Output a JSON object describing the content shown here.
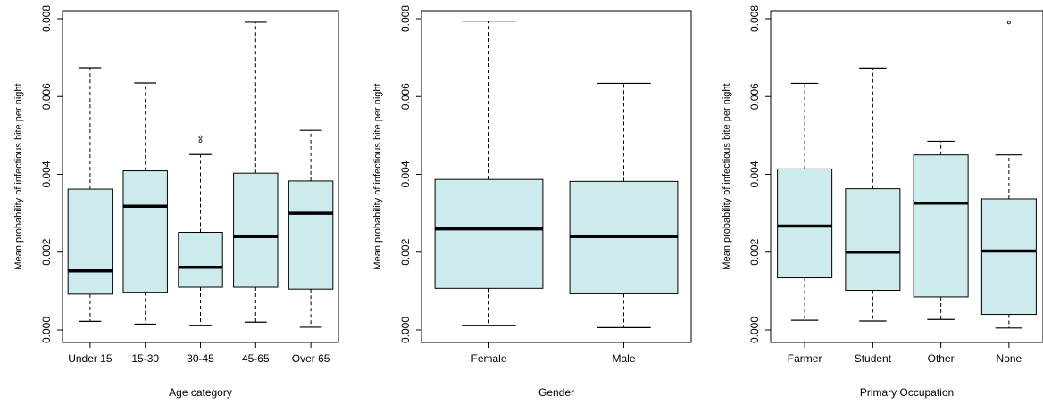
{
  "colors": {
    "box_fill": "#cdeaec",
    "stroke": "#000000",
    "background": "#ffffff"
  },
  "chart_data": [
    {
      "type": "boxplot",
      "title": "",
      "xlabel": "Age category",
      "ylabel": "Mean probability of infectious bite per night",
      "ylim": [
        0,
        0.008
      ],
      "yticks": [
        "0.000",
        "0.002",
        "0.004",
        "0.006",
        "0.008"
      ],
      "grid": false,
      "categories": [
        "Under 15",
        "15-30",
        "30-45",
        "45-65",
        "Over 65"
      ],
      "boxes": [
        {
          "min": 0.00022,
          "q1": 0.00092,
          "median": 0.00152,
          "q3": 0.00362,
          "max": 0.00674,
          "outliers": []
        },
        {
          "min": 0.00015,
          "q1": 0.00097,
          "median": 0.00318,
          "q3": 0.00409,
          "max": 0.00635,
          "outliers": []
        },
        {
          "min": 0.00012,
          "q1": 0.0011,
          "median": 0.00161,
          "q3": 0.00251,
          "max": 0.00451,
          "outliers": [
            0.00486,
            0.00496
          ]
        },
        {
          "min": 0.0002,
          "q1": 0.0011,
          "median": 0.0024,
          "q3": 0.00403,
          "max": 0.00791,
          "outliers": []
        },
        {
          "min": 7e-05,
          "q1": 0.00105,
          "median": 0.003,
          "q3": 0.00383,
          "max": 0.00513,
          "outliers": []
        }
      ]
    },
    {
      "type": "boxplot",
      "title": "",
      "xlabel": "Gender",
      "ylabel": "Mean probability of infectious bite per night",
      "ylim": [
        0,
        0.008
      ],
      "yticks": [
        "0.000",
        "0.002",
        "0.004",
        "0.006",
        "0.008"
      ],
      "grid": false,
      "categories": [
        "Female",
        "Male"
      ],
      "boxes": [
        {
          "min": 0.00012,
          "q1": 0.00107,
          "median": 0.0026,
          "q3": 0.00387,
          "max": 0.00794,
          "outliers": []
        },
        {
          "min": 6e-05,
          "q1": 0.00093,
          "median": 0.0024,
          "q3": 0.00382,
          "max": 0.00634,
          "outliers": []
        }
      ]
    },
    {
      "type": "boxplot",
      "title": "",
      "xlabel": "Primary Occupation",
      "ylabel": "Mean probability of infectious bite per night",
      "ylim": [
        0,
        0.008
      ],
      "yticks": [
        "0.000",
        "0.002",
        "0.004",
        "0.006",
        "0.008"
      ],
      "grid": false,
      "categories": [
        "Farmer",
        "Student",
        "Other",
        "None"
      ],
      "boxes": [
        {
          "min": 0.00025,
          "q1": 0.00134,
          "median": 0.00267,
          "q3": 0.00414,
          "max": 0.00634,
          "outliers": []
        },
        {
          "min": 0.00023,
          "q1": 0.00102,
          "median": 0.002,
          "q3": 0.00363,
          "max": 0.00673,
          "outliers": []
        },
        {
          "min": 0.00027,
          "q1": 0.00085,
          "median": 0.00326,
          "q3": 0.0045,
          "max": 0.00485,
          "outliers": []
        },
        {
          "min": 5e-05,
          "q1": 0.0004,
          "median": 0.00203,
          "q3": 0.00337,
          "max": 0.0045,
          "outliers": [
            0.0079
          ]
        }
      ]
    }
  ]
}
